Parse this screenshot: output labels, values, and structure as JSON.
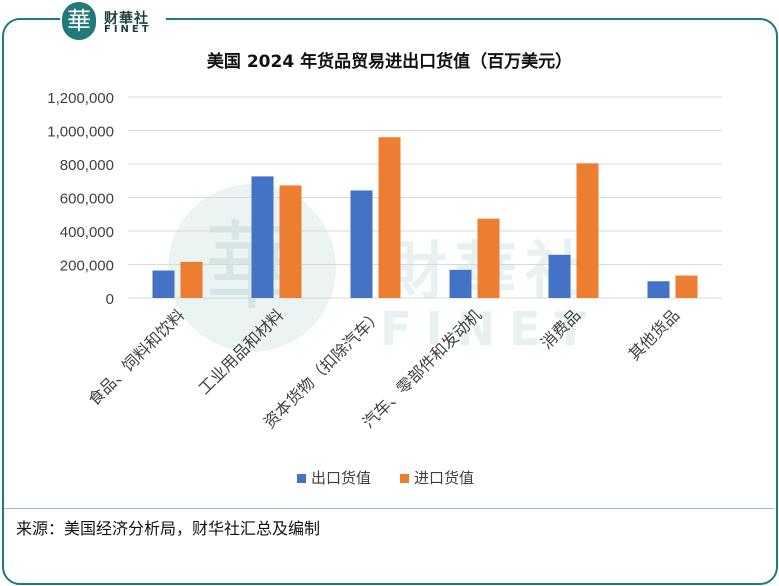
{
  "logo": {
    "mark": "華",
    "cn": "财華社",
    "en": "FINET"
  },
  "watermark": {
    "cn": "財華社",
    "en": "FINET"
  },
  "chart_data": {
    "type": "bar",
    "title": "美国 2024 年货品贸易进出口货值（百万美元）",
    "categories": [
      "食品、饲料和饮料",
      "工业用品和材料",
      "资本货物（扣除汽车）",
      "汽车、零部件和发动机",
      "消费品",
      "其他货品"
    ],
    "series": [
      {
        "name": "出口货值",
        "color": "#4472c4",
        "values": [
          164000,
          726000,
          642000,
          168000,
          258000,
          100000
        ]
      },
      {
        "name": "进口货值",
        "color": "#ed7d31",
        "values": [
          216000,
          672000,
          960000,
          474000,
          804000,
          134000
        ]
      }
    ],
    "yticks": [
      "0",
      "200,000",
      "400,000",
      "600,000",
      "800,000",
      "1,000,000",
      "1,200,000"
    ],
    "ylim": [
      0,
      1200000
    ],
    "grid": true,
    "legend": "bottom"
  },
  "source": "来源：美国经济分析局，财华社汇总及编制"
}
